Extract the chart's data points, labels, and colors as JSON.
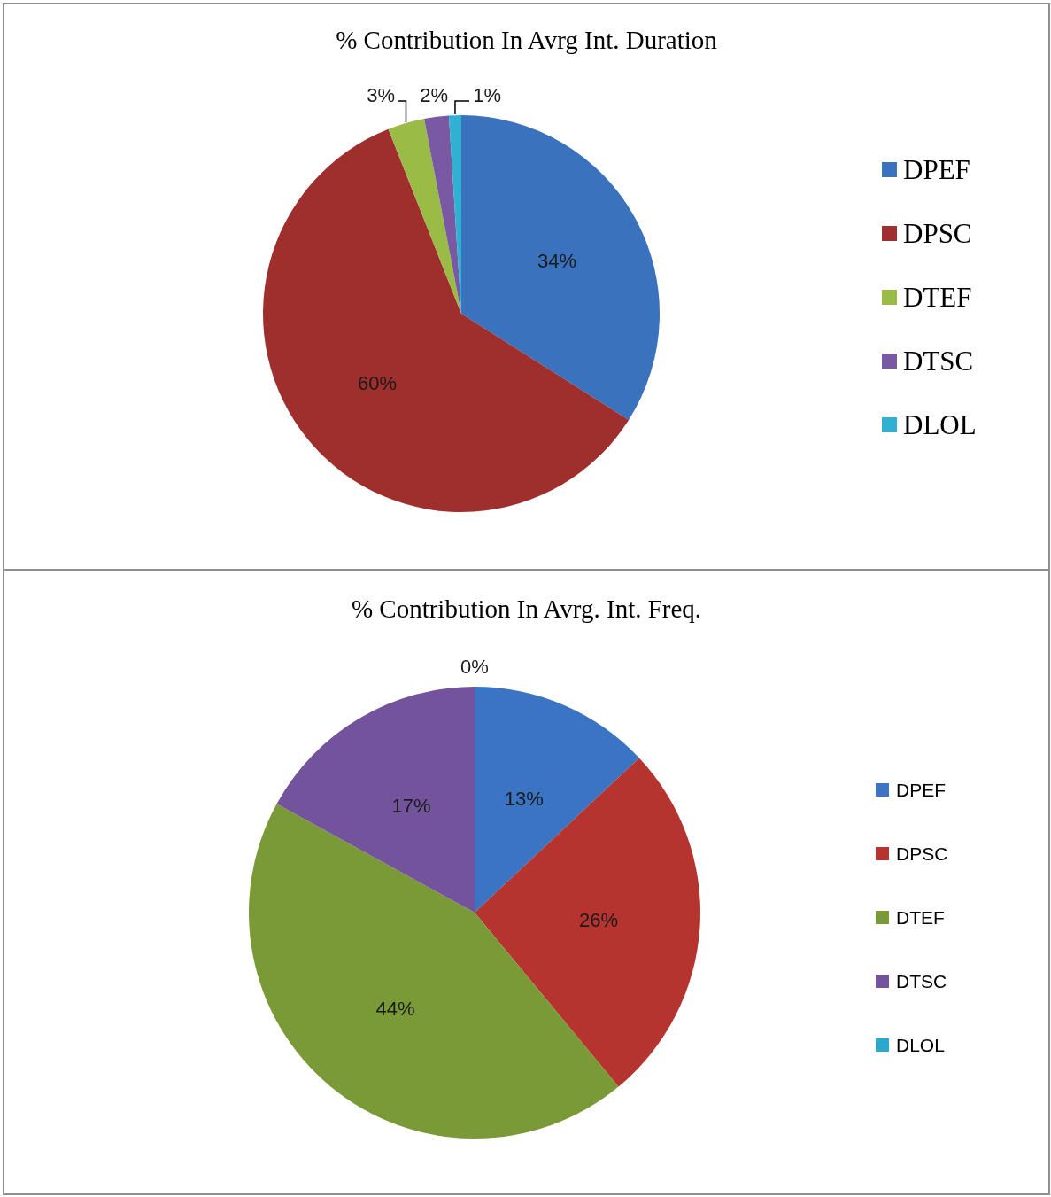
{
  "chart_data": [
    {
      "type": "pie",
      "title": "% Contribution In Avrg Int. Duration",
      "categories": [
        "DPEF",
        "DPSC",
        "DTEF",
        "DTSC",
        "DLOL"
      ],
      "values": [
        34,
        60,
        3,
        2,
        1
      ],
      "colors": [
        "#3b72bd",
        "#9e2f2c",
        "#9bbb47",
        "#7a59a3",
        "#2fb2d2"
      ],
      "value_labels": [
        "34%",
        "60%",
        "3%",
        "2%",
        "1%"
      ],
      "legend": "right"
    },
    {
      "type": "pie",
      "title": "% Contribution In Avrg. Int. Freq.",
      "categories": [
        "DPEF",
        "DPSC",
        "DTEF",
        "DTSC",
        "DLOL"
      ],
      "values": [
        13,
        26,
        44,
        17,
        0
      ],
      "colors": [
        "#3b74c2",
        "#b5342f",
        "#7a9a37",
        "#72539c",
        "#2ba8cb"
      ],
      "value_labels": [
        "13%",
        "26%",
        "44%",
        "17%",
        "0%"
      ],
      "legend": "right"
    }
  ]
}
